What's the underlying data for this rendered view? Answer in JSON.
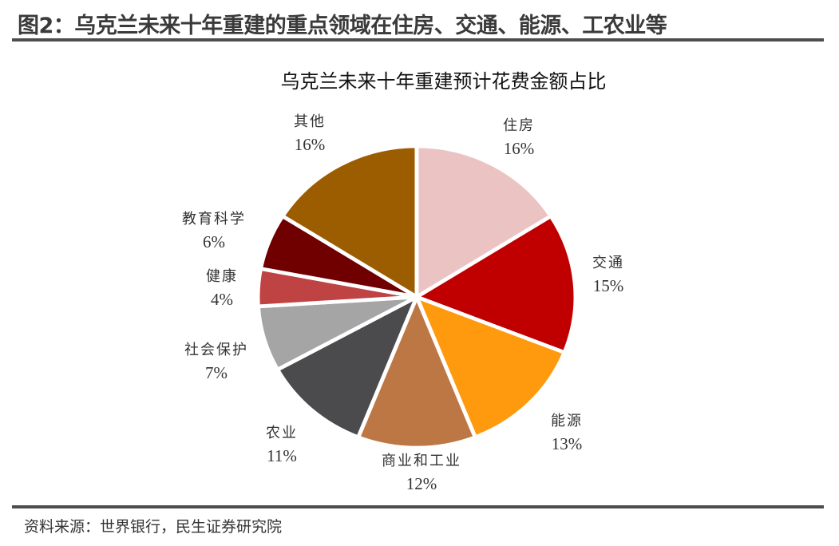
{
  "figure": {
    "title": "图2：乌克兰未来十年重建的重点领域在住房、交通、能源、工农业等",
    "source": "资料来源：世界银行，民生证券研究院"
  },
  "chart_data": {
    "type": "pie",
    "title": "乌克兰未来十年重建预计花费金额占比",
    "start_angle": "12 o'clock",
    "direction": "clockwise",
    "categories": [
      "住房",
      "交通",
      "能源",
      "商业和工业",
      "农业",
      "社会保护",
      "健康",
      "教育科学",
      "其他"
    ],
    "values": [
      16,
      15,
      13,
      12,
      11,
      7,
      4,
      6,
      16
    ],
    "labels": [
      "16%",
      "15%",
      "13%",
      "12%",
      "11%",
      "7%",
      "4%",
      "6%",
      "16%"
    ],
    "colors": [
      "#ebc3c3",
      "#c00000",
      "#ff9a0f",
      "#bd7744",
      "#4b4b4d",
      "#a5a5a5",
      "#c04344",
      "#700000",
      "#9c5d00"
    ],
    "legend": "none (data labels outside slices)"
  }
}
